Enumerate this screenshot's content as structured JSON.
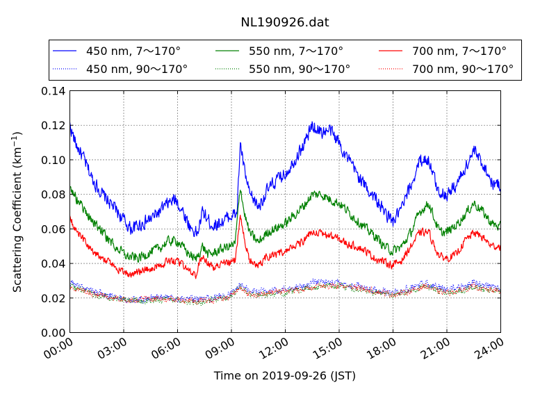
{
  "chart_data": {
    "type": "line",
    "title": "NL190926.dat",
    "xlabel": "Time on 2019-09-26 (JST)",
    "ylabel": "Scattering Coefficient (km",
    "ylabel_sup": "−1",
    "ylabel_close": ")",
    "xlim": [
      0,
      24
    ],
    "ylim": [
      0,
      0.14
    ],
    "grid": true,
    "legend_position": "top",
    "x_ticks": [
      0,
      3,
      6,
      9,
      12,
      15,
      18,
      21,
      24
    ],
    "x_tick_labels": [
      "00:00",
      "03:00",
      "06:00",
      "09:00",
      "12:00",
      "15:00",
      "18:00",
      "21:00",
      "24:00"
    ],
    "y_ticks": [
      0,
      0.02,
      0.04,
      0.06,
      0.08,
      0.1,
      0.12,
      0.14
    ],
    "y_tick_labels": [
      "0.00",
      "0.02",
      "0.04",
      "0.06",
      "0.08",
      "0.10",
      "0.12",
      "0.14"
    ],
    "series": [
      {
        "name": "450 nm, 7～170°",
        "color": "#0000ff",
        "style": "solid",
        "noise": 0.0035,
        "points": [
          [
            0,
            0.12
          ],
          [
            0.3,
            0.11
          ],
          [
            0.8,
            0.1
          ],
          [
            1.2,
            0.09
          ],
          [
            1.8,
            0.08
          ],
          [
            2.5,
            0.072
          ],
          [
            3,
            0.065
          ],
          [
            3.4,
            0.06
          ],
          [
            3.8,
            0.062
          ],
          [
            4.4,
            0.065
          ],
          [
            5,
            0.07
          ],
          [
            5.5,
            0.075
          ],
          [
            5.9,
            0.077
          ],
          [
            6.3,
            0.07
          ],
          [
            6.7,
            0.061
          ],
          [
            7.1,
            0.057
          ],
          [
            7.4,
            0.07
          ],
          [
            7.7,
            0.065
          ],
          [
            8,
            0.062
          ],
          [
            8.6,
            0.065
          ],
          [
            9,
            0.068
          ],
          [
            9.3,
            0.068
          ],
          [
            9.5,
            0.11
          ],
          [
            9.7,
            0.095
          ],
          [
            10,
            0.08
          ],
          [
            10.5,
            0.073
          ],
          [
            11,
            0.082
          ],
          [
            11.5,
            0.088
          ],
          [
            12,
            0.092
          ],
          [
            12.5,
            0.1
          ],
          [
            13,
            0.108
          ],
          [
            13.5,
            0.12
          ],
          [
            14,
            0.116
          ],
          [
            14.5,
            0.117
          ],
          [
            15,
            0.11
          ],
          [
            15.5,
            0.1
          ],
          [
            16,
            0.092
          ],
          [
            16.5,
            0.084
          ],
          [
            17,
            0.078
          ],
          [
            17.5,
            0.07
          ],
          [
            18,
            0.064
          ],
          [
            18.5,
            0.072
          ],
          [
            19,
            0.085
          ],
          [
            19.5,
            0.1
          ],
          [
            20,
            0.1
          ],
          [
            20.5,
            0.082
          ],
          [
            21,
            0.08
          ],
          [
            21.5,
            0.085
          ],
          [
            22,
            0.095
          ],
          [
            22.5,
            0.105
          ],
          [
            23,
            0.098
          ],
          [
            23.5,
            0.087
          ],
          [
            24,
            0.085
          ]
        ]
      },
      {
        "name": "450 nm, 90～170°",
        "color": "#0000ff",
        "style": "dotted",
        "noise": 0.0018,
        "points": [
          [
            0,
            0.029
          ],
          [
            1,
            0.025
          ],
          [
            2,
            0.022
          ],
          [
            3,
            0.02
          ],
          [
            4,
            0.019
          ],
          [
            5,
            0.021
          ],
          [
            6,
            0.02
          ],
          [
            7,
            0.019
          ],
          [
            8,
            0.02
          ],
          [
            9,
            0.022
          ],
          [
            9.5,
            0.028
          ],
          [
            10,
            0.024
          ],
          [
            11,
            0.024
          ],
          [
            12,
            0.025
          ],
          [
            13,
            0.027
          ],
          [
            14,
            0.03
          ],
          [
            15,
            0.029
          ],
          [
            16,
            0.027
          ],
          [
            17,
            0.025
          ],
          [
            18,
            0.023
          ],
          [
            19,
            0.026
          ],
          [
            19.8,
            0.029
          ],
          [
            20.5,
            0.026
          ],
          [
            21,
            0.025
          ],
          [
            22,
            0.027
          ],
          [
            22.5,
            0.029
          ],
          [
            23,
            0.027
          ],
          [
            24,
            0.026
          ]
        ]
      },
      {
        "name": "550 nm, 7～170°",
        "color": "#008000",
        "style": "solid",
        "noise": 0.0025,
        "points": [
          [
            0,
            0.085
          ],
          [
            0.5,
            0.075
          ],
          [
            1,
            0.068
          ],
          [
            1.8,
            0.058
          ],
          [
            2.5,
            0.05
          ],
          [
            3.2,
            0.044
          ],
          [
            3.8,
            0.043
          ],
          [
            4.4,
            0.046
          ],
          [
            5,
            0.049
          ],
          [
            5.5,
            0.053
          ],
          [
            6,
            0.053
          ],
          [
            6.5,
            0.047
          ],
          [
            7,
            0.042
          ],
          [
            7.4,
            0.05
          ],
          [
            7.7,
            0.045
          ],
          [
            8,
            0.046
          ],
          [
            8.6,
            0.049
          ],
          [
            9.2,
            0.051
          ],
          [
            9.5,
            0.085
          ],
          [
            9.7,
            0.07
          ],
          [
            10,
            0.058
          ],
          [
            10.5,
            0.052
          ],
          [
            11,
            0.058
          ],
          [
            12,
            0.063
          ],
          [
            12.5,
            0.068
          ],
          [
            13,
            0.073
          ],
          [
            13.5,
            0.08
          ],
          [
            14,
            0.08
          ],
          [
            14.5,
            0.077
          ],
          [
            15,
            0.075
          ],
          [
            15.5,
            0.07
          ],
          [
            16,
            0.065
          ],
          [
            16.5,
            0.06
          ],
          [
            17,
            0.056
          ],
          [
            17.5,
            0.05
          ],
          [
            18,
            0.047
          ],
          [
            18.5,
            0.05
          ],
          [
            19,
            0.058
          ],
          [
            19.5,
            0.07
          ],
          [
            20,
            0.075
          ],
          [
            20.3,
            0.066
          ],
          [
            20.6,
            0.058
          ],
          [
            21,
            0.058
          ],
          [
            21.5,
            0.062
          ],
          [
            22,
            0.068
          ],
          [
            22.5,
            0.075
          ],
          [
            23,
            0.07
          ],
          [
            23.5,
            0.063
          ],
          [
            24,
            0.061
          ]
        ]
      },
      {
        "name": "550 nm, 90～170°",
        "color": "#008000",
        "style": "dotted",
        "noise": 0.0016,
        "points": [
          [
            0,
            0.027
          ],
          [
            1,
            0.023
          ],
          [
            2,
            0.021
          ],
          [
            3,
            0.019
          ],
          [
            4,
            0.018
          ],
          [
            5,
            0.019
          ],
          [
            6,
            0.019
          ],
          [
            7,
            0.017
          ],
          [
            8,
            0.019
          ],
          [
            9,
            0.021
          ],
          [
            9.5,
            0.027
          ],
          [
            10,
            0.022
          ],
          [
            11,
            0.022
          ],
          [
            12,
            0.023
          ],
          [
            13,
            0.025
          ],
          [
            14,
            0.027
          ],
          [
            15,
            0.027
          ],
          [
            16,
            0.025
          ],
          [
            17,
            0.023
          ],
          [
            18,
            0.022
          ],
          [
            19,
            0.024
          ],
          [
            19.8,
            0.027
          ],
          [
            20.5,
            0.024
          ],
          [
            21,
            0.023
          ],
          [
            22,
            0.025
          ],
          [
            22.5,
            0.027
          ],
          [
            23,
            0.025
          ],
          [
            24,
            0.024
          ]
        ]
      },
      {
        "name": "700 nm, 7～170°",
        "color": "#ff0000",
        "style": "solid",
        "noise": 0.002,
        "points": [
          [
            0,
            0.066
          ],
          [
            0.5,
            0.057
          ],
          [
            1,
            0.05
          ],
          [
            1.8,
            0.043
          ],
          [
            2.5,
            0.038
          ],
          [
            3.2,
            0.034
          ],
          [
            3.8,
            0.035
          ],
          [
            4.4,
            0.037
          ],
          [
            5,
            0.039
          ],
          [
            5.5,
            0.041
          ],
          [
            6,
            0.041
          ],
          [
            6.5,
            0.037
          ],
          [
            7,
            0.033
          ],
          [
            7.4,
            0.045
          ],
          [
            7.7,
            0.04
          ],
          [
            8,
            0.038
          ],
          [
            8.6,
            0.04
          ],
          [
            9.2,
            0.042
          ],
          [
            9.5,
            0.068
          ],
          [
            9.7,
            0.055
          ],
          [
            10,
            0.042
          ],
          [
            10.5,
            0.039
          ],
          [
            11,
            0.044
          ],
          [
            12,
            0.047
          ],
          [
            12.5,
            0.05
          ],
          [
            13,
            0.053
          ],
          [
            13.5,
            0.059
          ],
          [
            14,
            0.057
          ],
          [
            14.5,
            0.056
          ],
          [
            15,
            0.054
          ],
          [
            15.5,
            0.051
          ],
          [
            16,
            0.05
          ],
          [
            16.5,
            0.047
          ],
          [
            17,
            0.043
          ],
          [
            17.5,
            0.041
          ],
          [
            18,
            0.039
          ],
          [
            18.5,
            0.042
          ],
          [
            19,
            0.05
          ],
          [
            19.5,
            0.058
          ],
          [
            20,
            0.058
          ],
          [
            20.3,
            0.05
          ],
          [
            20.6,
            0.044
          ],
          [
            21,
            0.043
          ],
          [
            21.5,
            0.045
          ],
          [
            22,
            0.053
          ],
          [
            22.5,
            0.058
          ],
          [
            23,
            0.055
          ],
          [
            23.5,
            0.05
          ],
          [
            24,
            0.05
          ]
        ]
      },
      {
        "name": "700 nm, 90～170°",
        "color": "#ff0000",
        "style": "dotted",
        "noise": 0.0015,
        "points": [
          [
            0,
            0.026
          ],
          [
            1,
            0.023
          ],
          [
            2,
            0.021
          ],
          [
            3,
            0.019
          ],
          [
            4,
            0.019
          ],
          [
            5,
            0.02
          ],
          [
            6,
            0.019
          ],
          [
            7,
            0.018
          ],
          [
            8,
            0.019
          ],
          [
            9,
            0.021
          ],
          [
            9.5,
            0.026
          ],
          [
            10,
            0.022
          ],
          [
            11,
            0.023
          ],
          [
            12,
            0.024
          ],
          [
            13,
            0.025
          ],
          [
            14,
            0.027
          ],
          [
            15,
            0.027
          ],
          [
            16,
            0.026
          ],
          [
            17,
            0.024
          ],
          [
            18,
            0.022
          ],
          [
            19,
            0.024
          ],
          [
            19.8,
            0.027
          ],
          [
            20.5,
            0.024
          ],
          [
            21,
            0.023
          ],
          [
            22,
            0.025
          ],
          [
            22.5,
            0.027
          ],
          [
            23,
            0.025
          ],
          [
            24,
            0.024
          ]
        ]
      }
    ]
  }
}
